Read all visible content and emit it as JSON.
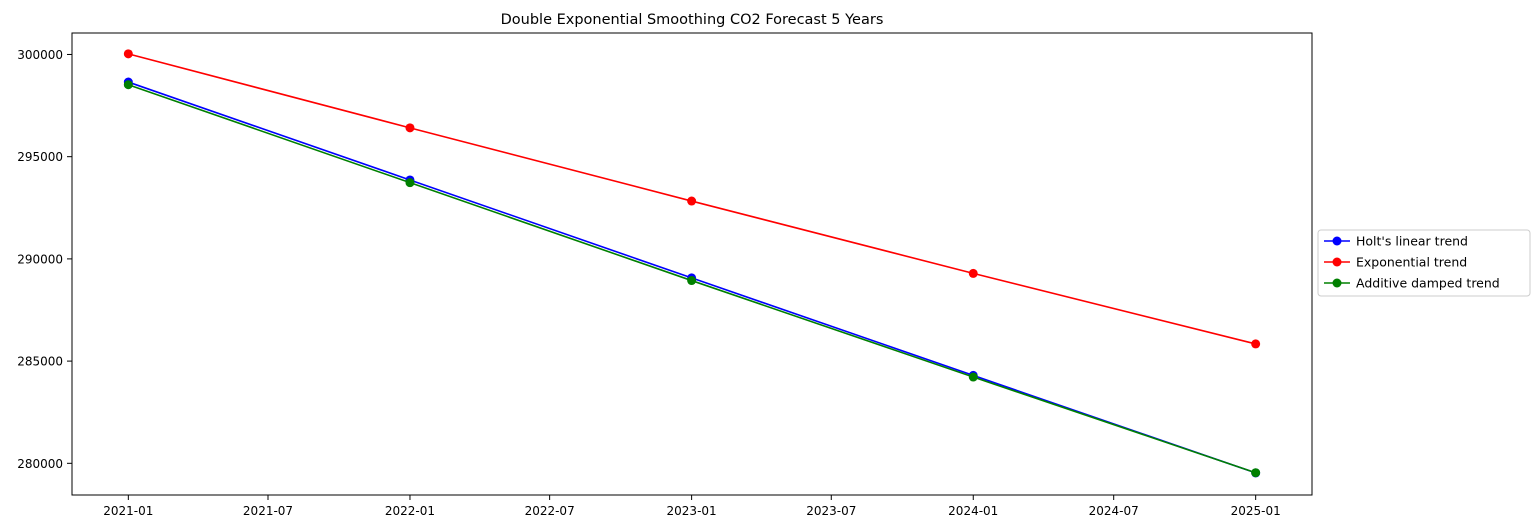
{
  "chart_data": {
    "type": "line",
    "title": "Double Exponential Smoothing CO2 Forecast 5 Years",
    "xlabel": "",
    "ylabel": "",
    "x": [
      "2021-01-01",
      "2022-01-01",
      "2023-01-01",
      "2024-01-01",
      "2025-01-01"
    ],
    "xlim": [
      "2020-10-20",
      "2025-03-15"
    ],
    "ylim": [
      278450,
      301050
    ],
    "x_ticks": [
      "2021-01",
      "2021-07",
      "2022-01",
      "2022-07",
      "2023-01",
      "2023-07",
      "2024-01",
      "2024-07",
      "2025-01"
    ],
    "y_ticks": [
      280000,
      285000,
      290000,
      295000,
      300000
    ],
    "grid": false,
    "legend_position": "outside-right",
    "series": [
      {
        "name": "Holt's linear trend",
        "color": "#0000ff",
        "marker": "circle",
        "values": [
          298650,
          293860,
          289070,
          284300,
          279530
        ]
      },
      {
        "name": "Exponential trend",
        "color": "#ff0000",
        "marker": "circle",
        "values": [
          300030,
          296410,
          292830,
          289290,
          285840
        ]
      },
      {
        "name": "Additive damped trend",
        "color": "#008000",
        "marker": "circle",
        "values": [
          298520,
          293730,
          288940,
          284220,
          279540
        ]
      }
    ]
  }
}
